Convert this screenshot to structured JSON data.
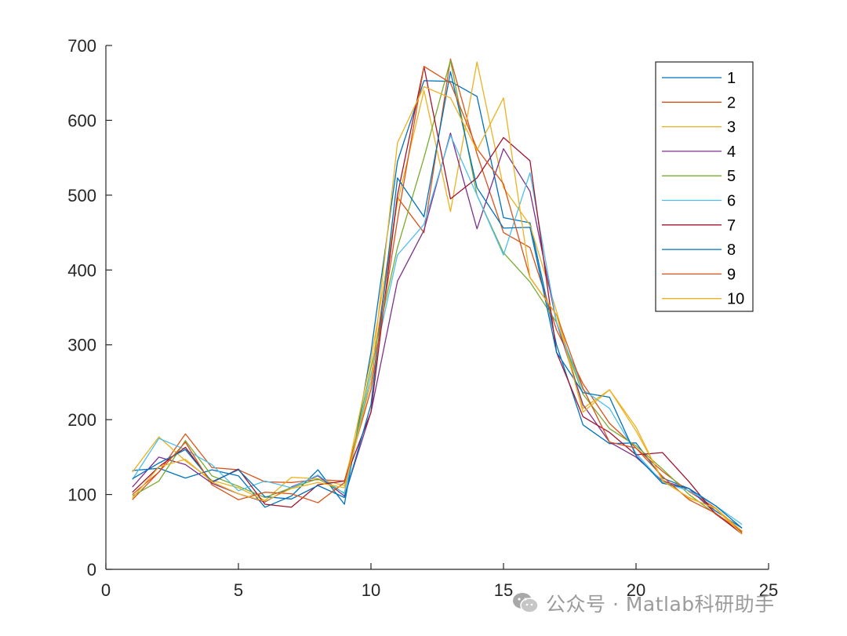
{
  "chart_data": {
    "type": "line",
    "title": "",
    "xlabel": "",
    "ylabel": "",
    "xlim": [
      0,
      25
    ],
    "ylim": [
      0,
      700
    ],
    "xticks": [
      0,
      5,
      10,
      15,
      20,
      25
    ],
    "yticks": [
      0,
      100,
      200,
      300,
      400,
      500,
      600,
      700
    ],
    "grid": false,
    "legend": {
      "placement": "top-right",
      "entries": [
        "1",
        "2",
        "3",
        "4",
        "5",
        "6",
        "7",
        "8",
        "9",
        "10"
      ]
    },
    "x": [
      1,
      2,
      3,
      4,
      5,
      6,
      7,
      8,
      9,
      10,
      11,
      12,
      13,
      14,
      15,
      16,
      17,
      18,
      19,
      20,
      21,
      22,
      23,
      24
    ],
    "series": [
      {
        "name": "1",
        "color": "#0072BD",
        "values": [
          132,
          135,
          122,
          133,
          125,
          83,
          98,
          133,
          87,
          290,
          545,
          653,
          652,
          632,
          470,
          463,
          300,
          193,
          168,
          169,
          122,
          108,
          78,
          55
        ]
      },
      {
        "name": "2",
        "color": "#D95319",
        "values": [
          93,
          130,
          181,
          136,
          133,
          117,
          116,
          120,
          118,
          250,
          497,
          450,
          682,
          555,
          450,
          430,
          320,
          248,
          195,
          162,
          131,
          104,
          82,
          50
        ]
      },
      {
        "name": "3",
        "color": "#EDB120",
        "values": [
          130,
          177,
          145,
          119,
          109,
          92,
          123,
          121,
          112,
          280,
          490,
          640,
          478,
          678,
          510,
          460,
          345,
          215,
          240,
          185,
          120,
          95,
          82,
          51
        ]
      },
      {
        "name": "4",
        "color": "#7E2F8E",
        "values": [
          110,
          150,
          140,
          115,
          101,
          90,
          110,
          125,
          98,
          210,
          385,
          453,
          583,
          455,
          562,
          505,
          330,
          220,
          170,
          150,
          118,
          108,
          75,
          47
        ]
      },
      {
        "name": "5",
        "color": "#77AC30",
        "values": [
          98,
          118,
          172,
          125,
          111,
          96,
          109,
          121,
          102,
          270,
          430,
          550,
          680,
          500,
          423,
          384,
          330,
          234,
          188,
          165,
          134,
          100,
          74,
          50
        ]
      },
      {
        "name": "6",
        "color": "#4DBEEE",
        "values": [
          120,
          175,
          160,
          140,
          105,
          118,
          109,
          126,
          101,
          260,
          420,
          461,
          580,
          500,
          420,
          530,
          330,
          240,
          215,
          155,
          116,
          105,
          85,
          60
        ]
      },
      {
        "name": "7",
        "color": "#A2142F",
        "values": [
          103,
          137,
          163,
          116,
          134,
          87,
          83,
          113,
          118,
          210,
          500,
          672,
          495,
          523,
          577,
          546,
          290,
          204,
          183,
          153,
          156,
          117,
          74,
          48
        ]
      },
      {
        "name": "8",
        "color": "#0072BD",
        "values": [
          121,
          142,
          160,
          117,
          133,
          97,
          94,
          112,
          96,
          220,
          523,
          471,
          665,
          510,
          456,
          457,
          290,
          236,
          230,
          152,
          115,
          108,
          85,
          55
        ]
      },
      {
        "name": "9",
        "color": "#D95319",
        "values": [
          100,
          130,
          170,
          113,
          93,
          103,
          101,
          89,
          116,
          240,
          467,
          672,
          650,
          562,
          515,
          390,
          340,
          242,
          170,
          162,
          124,
          93,
          75,
          50
        ]
      },
      {
        "name": "10",
        "color": "#EDB120",
        "values": [
          95,
          137,
          147,
          117,
          101,
          91,
          108,
          116,
          109,
          250,
          570,
          645,
          630,
          560,
          630,
          390,
          340,
          210,
          240,
          190,
          118,
          96,
          81,
          47
        ]
      }
    ]
  },
  "watermark": {
    "text": "公众号 · Matlab科研助手",
    "icon": "wechat-icon"
  }
}
